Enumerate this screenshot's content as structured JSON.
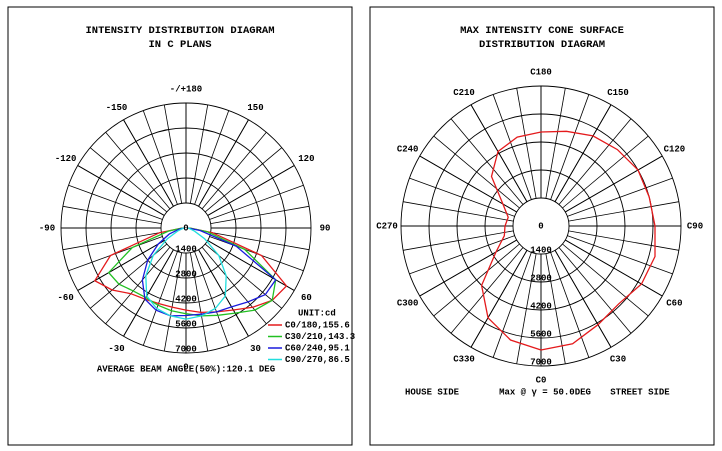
{
  "chart_data": [
    {
      "type": "polar",
      "title": [
        "INTENSITY DISTRIBUTION DIAGRAM",
        "IN C PLANS"
      ],
      "x": [
        -90,
        -80,
        -70,
        -60,
        -50,
        -40,
        -30,
        -20,
        -10,
        0,
        10,
        20,
        30,
        40,
        50,
        60,
        70,
        80,
        90
      ],
      "series": [
        {
          "name": "C0/180,155.6",
          "color": "#e41a1c",
          "values": [
            200,
            1500,
            4500,
            5900,
            5400,
            4800,
            4600,
            4500,
            4500,
            4600,
            4800,
            5000,
            5300,
            5800,
            6300,
            6500,
            4500,
            1500,
            200
          ]
        },
        {
          "name": "C30/210,143.3",
          "color": "#22c022",
          "values": [
            200,
            1000,
            3200,
            5000,
            4900,
            4600,
            4500,
            4600,
            4700,
            4800,
            5000,
            5200,
            5500,
            6000,
            6300,
            5800,
            3500,
            1200,
            200
          ]
        },
        {
          "name": "C60/240,95.1",
          "color": "#1a1adc",
          "values": [
            100,
            400,
            1000,
            1800,
            2800,
            3800,
            4600,
            4900,
            5000,
            4900,
            4900,
            5000,
            5100,
            5400,
            5800,
            5800,
            3000,
            800,
            100
          ]
        },
        {
          "name": "C90/270,86.5",
          "color": "#22dede",
          "values": [
            100,
            200,
            500,
            1200,
            2400,
            3500,
            4400,
            4800,
            5000,
            5100,
            5000,
            4800,
            4400,
            3500,
            2400,
            1200,
            500,
            200,
            100
          ]
        }
      ],
      "rlim": [
        0,
        7000
      ],
      "rticks": [
        0,
        1400,
        2800,
        4200,
        5600,
        7000
      ],
      "thetaticks": [
        0,
        30,
        60,
        90,
        120,
        150,
        {
          "value": 180,
          "label": "-/+180"
        },
        -150,
        -120,
        -90,
        -60,
        -30
      ],
      "legend_title": "UNIT:cd",
      "notes": [
        "AVERAGE BEAM ANGLE(50%):120.1 DEG"
      ]
    },
    {
      "type": "polar",
      "title": [
        "MAX INTENSITY CONE SURFACE",
        "DISTRIBUTION DIAGRAM"
      ],
      "x": [
        0,
        15,
        30,
        45,
        60,
        75,
        90,
        105,
        120,
        135,
        150,
        165,
        180,
        195,
        210,
        225,
        240,
        255,
        270,
        285,
        300,
        315,
        330,
        345,
        360
      ],
      "series": [
        {
          "color": "#e41a1c",
          "values": [
            6200,
            6100,
            5700,
            5500,
            5800,
            5900,
            5700,
            5600,
            5600,
            5400,
            5200,
            4900,
            4700,
            4600,
            4300,
            3500,
            2200,
            1700,
            1800,
            1900,
            2600,
            4200,
            5300,
            5900,
            6200
          ]
        }
      ],
      "rlim": [
        0,
        7000
      ],
      "rticks": [
        0,
        1400,
        2800,
        4200,
        5600,
        7000
      ],
      "thetaticks": [
        {
          "value": 0,
          "label": "C0"
        },
        {
          "value": 30,
          "label": "C30"
        },
        {
          "value": 60,
          "label": "C60"
        },
        {
          "value": 90,
          "label": "C90"
        },
        {
          "value": 120,
          "label": "C120"
        },
        {
          "value": 150,
          "label": "C150"
        },
        {
          "value": 180,
          "label": "C180"
        },
        {
          "value": 210,
          "label": "C210"
        },
        {
          "value": 240,
          "label": "C240"
        },
        {
          "value": 270,
          "label": "C270"
        },
        {
          "value": 300,
          "label": "C300"
        },
        {
          "value": 330,
          "label": "C330"
        }
      ],
      "notes": [
        "HOUSE SIDE",
        "Max @ γ = 50.0DEG",
        "STREET SIDE"
      ]
    }
  ]
}
